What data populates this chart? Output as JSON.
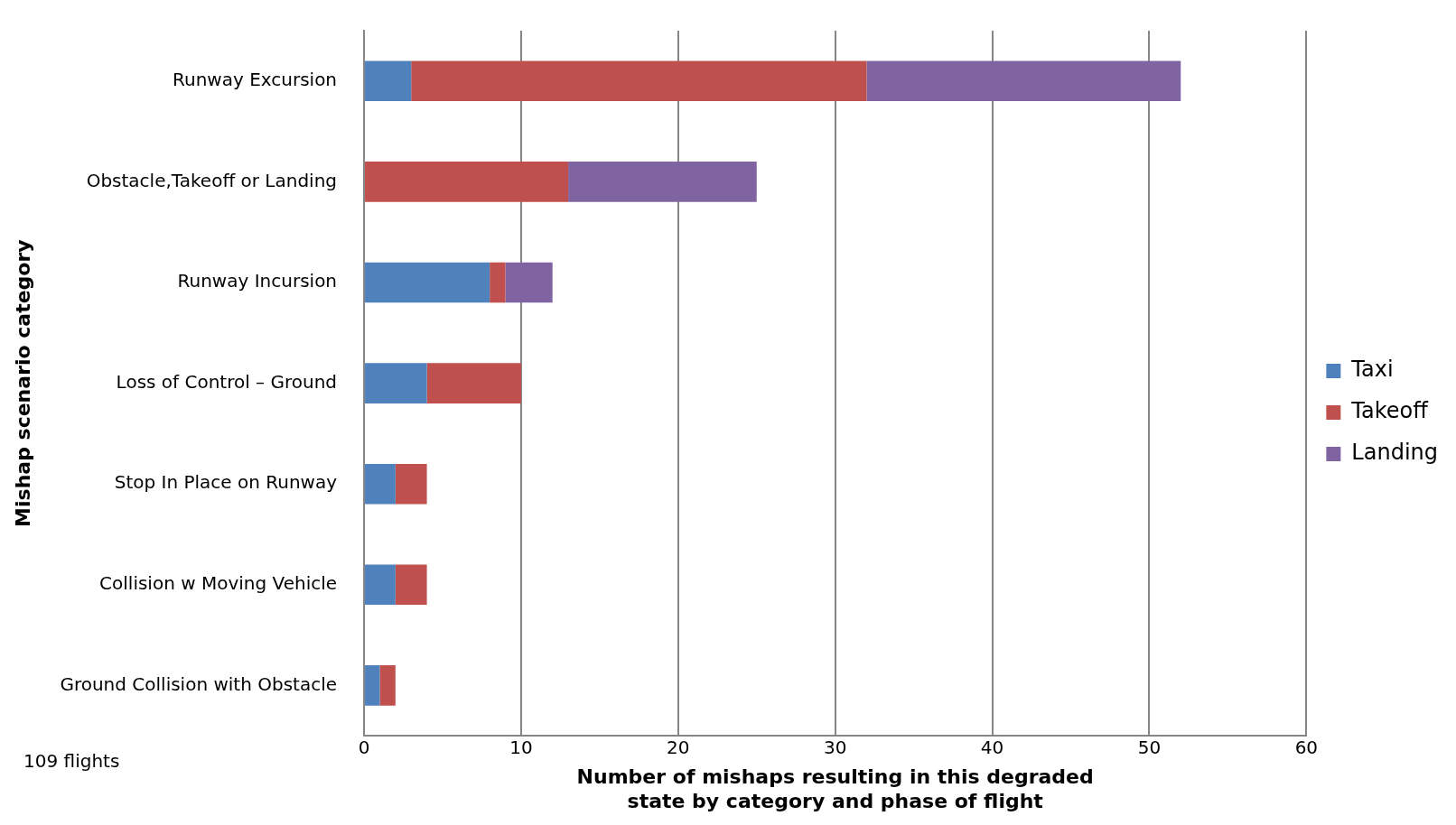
{
  "chart_data": {
    "type": "bar",
    "orientation": "horizontal",
    "stacked": true,
    "ylabel": "Mishap scenario category",
    "xlabel": "Number of mishaps resulting in this degraded state by category and phase of flight",
    "categories": [
      "Runway Excursion",
      "Obstacle,Takeoff or Landing",
      "Runway Incursion",
      "Loss of Control – Ground",
      "Stop In Place on Runway",
      "Collision w Moving Vehicle",
      "Ground Collision with Obstacle"
    ],
    "series": [
      {
        "name": "Taxi",
        "color": "#4f81bd",
        "values": [
          3,
          0,
          8,
          4,
          2,
          2,
          1
        ]
      },
      {
        "name": "Takeoff",
        "color": "#c0504d",
        "values": [
          29,
          13,
          1,
          6,
          2,
          2,
          1
        ]
      },
      {
        "name": "Landing",
        "color": "#8064a2",
        "values": [
          20,
          12,
          3,
          0,
          0,
          0,
          0
        ]
      }
    ],
    "xlim": [
      0,
      60
    ],
    "xticks": [
      0,
      10,
      20,
      30,
      40,
      50,
      60
    ],
    "grid": "x",
    "legend": "right",
    "annotations": [
      "109 flights"
    ]
  }
}
